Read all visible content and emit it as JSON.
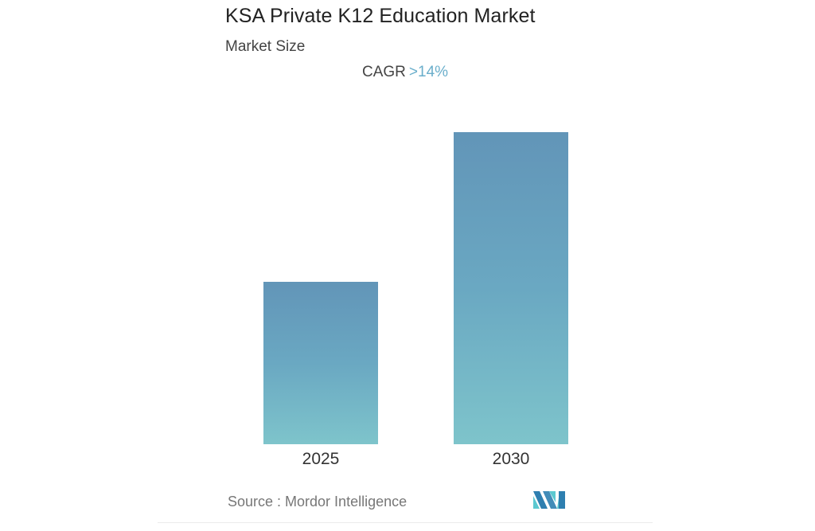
{
  "header": {
    "title": "KSA Private K12 Education Market",
    "subtitle": "Market Size",
    "cagr_label": "CAGR",
    "cagr_value": ">14%"
  },
  "footer": {
    "source": "Source :  Mordor Intelligence",
    "logo_icon": "mordor-intelligence-logo-icon"
  },
  "colors": {
    "bar_top": "#6295b8",
    "bar_bottom": "#7ec4cb",
    "cagr_accent": "#6aaecb",
    "logo_dark": "#2e7fb0",
    "logo_light": "#5bc8d0"
  },
  "chart_data": {
    "type": "bar",
    "title": "KSA Private K12 Education Market",
    "subtitle": "Market Size",
    "annotation": "CAGR >14%",
    "categories": [
      "2025",
      "2030"
    ],
    "values": [
      1.0,
      1.92
    ],
    "value_note": "Relative bar heights (no y-axis shown); 2030 bar ≈ 1.92× the 2025 bar",
    "xlabel": "",
    "ylabel": "",
    "grid": false,
    "legend": null,
    "source": "Mordor Intelligence"
  }
}
